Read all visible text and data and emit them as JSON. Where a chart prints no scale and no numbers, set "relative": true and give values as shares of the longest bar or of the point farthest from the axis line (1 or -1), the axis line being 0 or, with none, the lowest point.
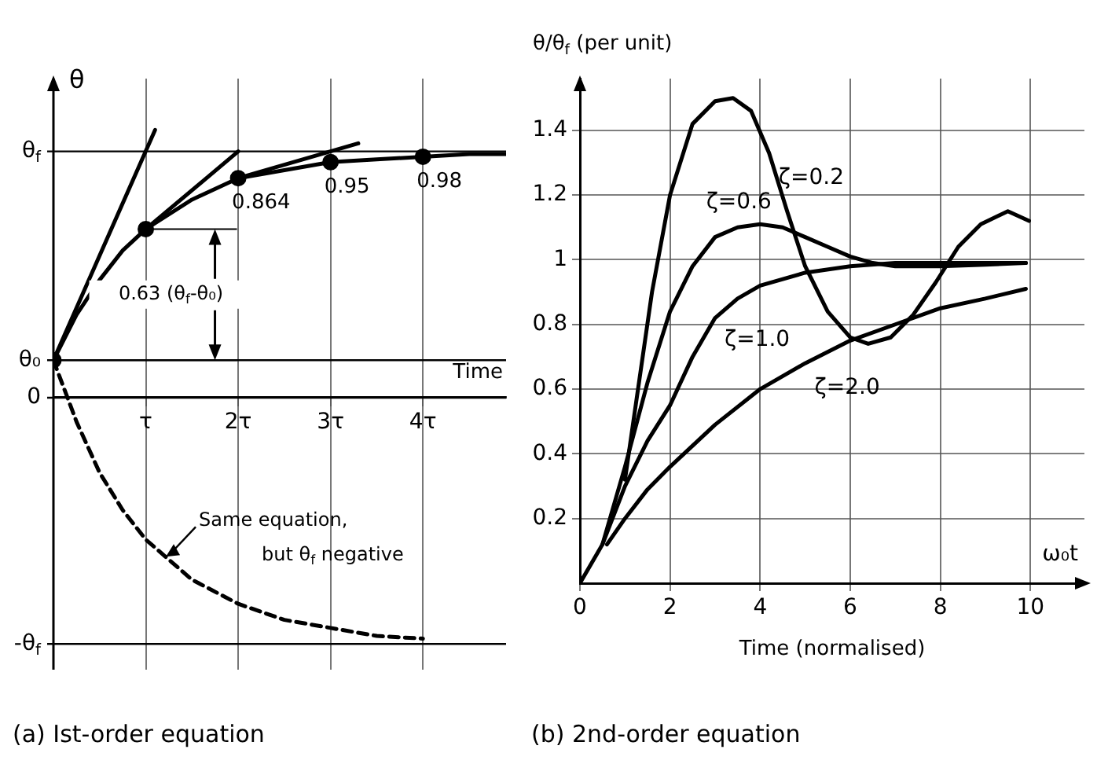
{
  "chart_data": [
    {
      "type": "line",
      "relative": true,
      "title": "(a) Ist-order equation",
      "xlabel": "Time",
      "ylabel": "θ",
      "xlim": [
        0,
        4.9
      ],
      "xticks": [
        {
          "value": 1,
          "label": "τ"
        },
        {
          "value": 2,
          "label": "2τ"
        },
        {
          "value": 3,
          "label": "3τ"
        },
        {
          "value": 4,
          "label": "4τ"
        }
      ],
      "grid": "x",
      "legend": false,
      "marker": "none",
      "ref_lines": [
        {
          "axis": "y",
          "value": 0.92,
          "label": "θ$_{f}$"
        },
        {
          "axis": "y",
          "value": 0.14,
          "label": "θ₀"
        },
        {
          "axis": "y",
          "value": 0,
          "label": "0"
        },
        {
          "axis": "y",
          "value": -0.92,
          "label": "-θ$_{f}$"
        }
      ],
      "annotations": [
        "0.63 (θ$_{f}$-θ₀)",
        {
          "text": "0.864",
          "x": 2,
          "y": 0.82
        },
        {
          "text": "0.95",
          "x": 3,
          "y": 0.88
        },
        {
          "text": "0.98",
          "x": 4,
          "y": 0.9
        },
        {
          "text": "Same equation, but θ$_{f}$ negative",
          "x": 1.2,
          "y": -0.6
        }
      ],
      "series": [
        {
          "color": "#000000",
          "x": [
            0,
            0.25,
            0.5,
            0.75,
            1,
            1.5,
            2,
            2.5,
            3,
            3.5,
            4,
            4.5,
            4.9
          ],
          "values": [
            0.14,
            0.31,
            0.44,
            0.55,
            0.63,
            0.74,
            0.82,
            0.85,
            0.88,
            0.89,
            0.9,
            0.91,
            0.91
          ]
        },
        {
          "color": "#000000",
          "x": [
            0,
            1.1
          ],
          "values": [
            0.14,
            1.0
          ]
        },
        {
          "color": "#000000",
          "x": [
            1,
            2
          ],
          "values": [
            0.63,
            0.92
          ]
        },
        {
          "color": "#000000",
          "x": [
            2,
            3.3
          ],
          "values": [
            0.82,
            0.95
          ]
        },
        {
          "color": "#000000",
          "line_style": "dashed",
          "x": [
            0,
            0.25,
            0.5,
            0.75,
            1,
            1.5,
            2,
            2.5,
            3,
            3.5,
            4
          ],
          "values": [
            0.14,
            -0.09,
            -0.28,
            -0.42,
            -0.53,
            -0.68,
            -0.77,
            -0.83,
            -0.86,
            -0.89,
            -0.9
          ]
        },
        {
          "type": "scatter",
          "marker": "circle",
          "color": "#000000",
          "x": [
            0,
            1,
            2,
            3,
            4
          ],
          "values": [
            0.14,
            0.63,
            0.82,
            0.88,
            0.9
          ]
        }
      ]
    },
    {
      "type": "line",
      "title": "(b) 2nd-order equation",
      "xlabel": "Time (normalised)",
      "ylabel": "θ/θ$_{f}$ (per unit)",
      "xlim": [
        0,
        11.2
      ],
      "ylim": [
        0,
        1.56
      ],
      "xticks": [
        0,
        2,
        4,
        6,
        8,
        10
      ],
      "yticks": [
        0.2,
        0.4,
        0.6,
        0.8,
        1.0,
        1.2,
        1.4
      ],
      "grid": true,
      "legend": false,
      "marker": "none",
      "annotations": [
        "ω₀t"
      ],
      "series": [
        {
          "name": "ζ=0.2",
          "color": "#000000",
          "x": [
            1.0,
            1.6,
            2.0,
            2.5,
            3.0,
            3.4,
            3.8,
            4.2,
            4.6,
            5.0,
            5.5,
            6.0,
            6.4,
            6.9,
            7.4,
            7.9,
            8.4,
            8.9,
            9.5,
            9.97
          ],
          "values": [
            0.32,
            0.9,
            1.2,
            1.42,
            1.49,
            1.5,
            1.46,
            1.33,
            1.15,
            0.98,
            0.84,
            0.76,
            0.74,
            0.76,
            0.83,
            0.93,
            1.04,
            1.11,
            1.15,
            1.12
          ]
        },
        {
          "name": "ζ=0.6",
          "color": "#000000",
          "x": [
            0.5,
            1.0,
            1.5,
            2.0,
            2.5,
            3.0,
            3.5,
            4.0,
            4.5,
            5.0,
            5.5,
            6.0,
            6.5,
            7.0,
            8.0,
            9.0,
            9.9
          ],
          "values": [
            0.12,
            0.36,
            0.62,
            0.84,
            0.98,
            1.07,
            1.1,
            1.11,
            1.1,
            1.07,
            1.04,
            1.01,
            0.99,
            0.98,
            0.98,
            0.985,
            0.99
          ]
        },
        {
          "name": "ζ=1.0",
          "color": "#000000",
          "x": [
            0,
            0.5,
            1.0,
            1.5,
            2.0,
            2.5,
            3.0,
            3.5,
            4.0,
            5.0,
            6.0,
            7.0,
            8.0,
            9.0,
            9.9
          ],
          "values": [
            0,
            0.12,
            0.3,
            0.44,
            0.55,
            0.7,
            0.82,
            0.88,
            0.92,
            0.96,
            0.98,
            0.99,
            0.99,
            0.99,
            0.99
          ]
        },
        {
          "name": "ζ=2.0",
          "color": "#000000",
          "x": [
            0.6,
            1.0,
            1.5,
            2.0,
            3.0,
            4.0,
            5.0,
            6.0,
            7.0,
            8.0,
            9.0,
            9.9
          ],
          "values": [
            0.12,
            0.2,
            0.29,
            0.36,
            0.49,
            0.6,
            0.68,
            0.75,
            0.8,
            0.85,
            0.88,
            0.91
          ]
        }
      ]
    }
  ]
}
